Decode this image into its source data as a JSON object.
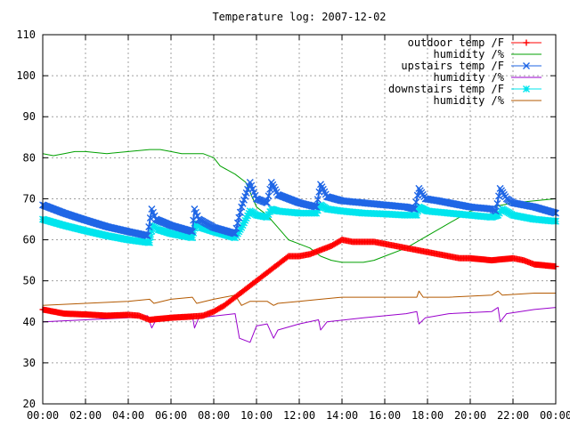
{
  "chart_data": {
    "type": "line",
    "title": "Temperature log: 2007-12-02",
    "xlabel": "",
    "ylabel": "",
    "xlim": [
      0,
      24
    ],
    "ylim": [
      20,
      110
    ],
    "x_ticks": [
      {
        "value": 0,
        "label": "00:00"
      },
      {
        "value": 2,
        "label": "02:00"
      },
      {
        "value": 4,
        "label": "04:00"
      },
      {
        "value": 6,
        "label": "06:00"
      },
      {
        "value": 8,
        "label": "08:00"
      },
      {
        "value": 10,
        "label": "10:00"
      },
      {
        "value": 12,
        "label": "12:00"
      },
      {
        "value": 14,
        "label": "14:00"
      },
      {
        "value": 16,
        "label": "16:00"
      },
      {
        "value": 18,
        "label": "18:00"
      },
      {
        "value": 20,
        "label": "20:00"
      },
      {
        "value": 22,
        "label": "22:00"
      },
      {
        "value": 24,
        "label": "00:00"
      }
    ],
    "y_ticks": [
      20,
      30,
      40,
      50,
      60,
      70,
      80,
      90,
      100,
      110
    ],
    "grid": true,
    "legend_position": "top-right",
    "series": [
      {
        "name": "outdoor temp /F",
        "color": "#ff0000",
        "marker": "plus",
        "points": [
          [
            0,
            43
          ],
          [
            1,
            42
          ],
          [
            2,
            41.8
          ],
          [
            3,
            41.5
          ],
          [
            4,
            41.7
          ],
          [
            4.5,
            41.5
          ],
          [
            5,
            40.5
          ],
          [
            6,
            41
          ],
          [
            7,
            41.3
          ],
          [
            7.5,
            41.5
          ],
          [
            8,
            42.5
          ],
          [
            8.5,
            44
          ],
          [
            9,
            46
          ],
          [
            9.5,
            48
          ],
          [
            10,
            50
          ],
          [
            10.5,
            52
          ],
          [
            11,
            54
          ],
          [
            11.5,
            56
          ],
          [
            12,
            56
          ],
          [
            12.5,
            56.5
          ],
          [
            13,
            57.5
          ],
          [
            13.5,
            58.5
          ],
          [
            14,
            60
          ],
          [
            14.5,
            59.5
          ],
          [
            15,
            59.5
          ],
          [
            15.5,
            59.5
          ],
          [
            16,
            59
          ],
          [
            16.5,
            58.5
          ],
          [
            17,
            58
          ],
          [
            17.5,
            57.5
          ],
          [
            18,
            57
          ],
          [
            18.5,
            56.5
          ],
          [
            19,
            56
          ],
          [
            19.5,
            55.5
          ],
          [
            20,
            55.5
          ],
          [
            21,
            55
          ],
          [
            22,
            55.5
          ],
          [
            22.5,
            55
          ],
          [
            23,
            54
          ],
          [
            24,
            53.5
          ]
        ]
      },
      {
        "name": "humidity /%",
        "color": "#00a000",
        "marker": "none",
        "points": [
          [
            0,
            81
          ],
          [
            0.5,
            80.5
          ],
          [
            1,
            81
          ],
          [
            1.5,
            81.5
          ],
          [
            2,
            81.5
          ],
          [
            3,
            81
          ],
          [
            4,
            81.5
          ],
          [
            5,
            82
          ],
          [
            5.5,
            82
          ],
          [
            6,
            81.5
          ],
          [
            6.5,
            81
          ],
          [
            7,
            81
          ],
          [
            7.5,
            81
          ],
          [
            8,
            80
          ],
          [
            8.3,
            78
          ],
          [
            9,
            76
          ],
          [
            9.5,
            74
          ],
          [
            10,
            68
          ],
          [
            10.5,
            66
          ],
          [
            11,
            63
          ],
          [
            11.5,
            60
          ],
          [
            12,
            59
          ],
          [
            12.5,
            58
          ],
          [
            13,
            56
          ],
          [
            13.5,
            55
          ],
          [
            14,
            54.5
          ],
          [
            15,
            54.5
          ],
          [
            15.5,
            55
          ],
          [
            16,
            56
          ],
          [
            17,
            58
          ],
          [
            18,
            61
          ],
          [
            19,
            64
          ],
          [
            20,
            67
          ],
          [
            21,
            68
          ],
          [
            22,
            69
          ],
          [
            23,
            69.5
          ],
          [
            24,
            70
          ]
        ]
      },
      {
        "name": "upstairs temp /F",
        "color": "#1f66e6",
        "marker": "x",
        "points": [
          [
            0,
            68.5
          ],
          [
            1,
            66.5
          ],
          [
            2,
            64.8
          ],
          [
            3,
            63.2
          ],
          [
            4,
            62
          ],
          [
            4.9,
            61
          ],
          [
            5.1,
            67.5
          ],
          [
            5.3,
            65
          ],
          [
            6,
            63.5
          ],
          [
            7,
            62
          ],
          [
            7.1,
            67.5
          ],
          [
            7.3,
            65
          ],
          [
            8,
            63
          ],
          [
            9,
            61.5
          ],
          [
            9.3,
            68
          ],
          [
            9.7,
            74
          ],
          [
            10,
            70
          ],
          [
            10.5,
            69
          ],
          [
            10.7,
            74
          ],
          [
            11,
            71
          ],
          [
            12,
            69
          ],
          [
            12.8,
            68
          ],
          [
            13,
            73.5
          ],
          [
            13.3,
            70.5
          ],
          [
            14,
            69.5
          ],
          [
            15,
            69
          ],
          [
            16,
            68.5
          ],
          [
            17,
            68
          ],
          [
            17.4,
            67.5
          ],
          [
            17.6,
            72.5
          ],
          [
            17.9,
            70
          ],
          [
            18.5,
            69.5
          ],
          [
            19,
            69
          ],
          [
            20,
            68
          ],
          [
            21,
            67.5
          ],
          [
            21.2,
            67
          ],
          [
            21.4,
            72.5
          ],
          [
            21.7,
            70
          ],
          [
            22,
            69
          ],
          [
            23,
            68
          ],
          [
            24,
            66.5
          ]
        ]
      },
      {
        "name": "humidity /%",
        "color": "#9900cc",
        "marker": "none",
        "points": [
          [
            0,
            40
          ],
          [
            2,
            40.5
          ],
          [
            4,
            41
          ],
          [
            4.9,
            41.5
          ],
          [
            5.1,
            38.5
          ],
          [
            5.3,
            40.5
          ],
          [
            7,
            41.5
          ],
          [
            7.1,
            38.5
          ],
          [
            7.3,
            41
          ],
          [
            9,
            42
          ],
          [
            9.2,
            36
          ],
          [
            9.7,
            35
          ],
          [
            10,
            39
          ],
          [
            10.5,
            39.5
          ],
          [
            10.8,
            36
          ],
          [
            11,
            38
          ],
          [
            12,
            39.5
          ],
          [
            12.9,
            40.5
          ],
          [
            13,
            38
          ],
          [
            13.3,
            40
          ],
          [
            15,
            41
          ],
          [
            17,
            42
          ],
          [
            17.5,
            42.5
          ],
          [
            17.6,
            39.5
          ],
          [
            17.9,
            41
          ],
          [
            19,
            42
          ],
          [
            21,
            42.5
          ],
          [
            21.3,
            43.5
          ],
          [
            21.4,
            40
          ],
          [
            21.7,
            42
          ],
          [
            23,
            43
          ],
          [
            24,
            43.5
          ]
        ]
      },
      {
        "name": "downstairs temp /F",
        "color": "#00e5ee",
        "marker": "star",
        "points": [
          [
            0,
            65
          ],
          [
            1,
            63.5
          ],
          [
            2,
            62.2
          ],
          [
            3,
            61
          ],
          [
            4,
            60
          ],
          [
            5,
            59.3
          ],
          [
            5.15,
            63.5
          ],
          [
            5.4,
            62.5
          ],
          [
            6,
            61.5
          ],
          [
            7,
            60.5
          ],
          [
            7.15,
            64
          ],
          [
            7.4,
            63
          ],
          [
            8,
            62
          ],
          [
            9,
            60.5
          ],
          [
            9.3,
            63
          ],
          [
            9.7,
            67
          ],
          [
            10,
            66
          ],
          [
            10.5,
            65.5
          ],
          [
            10.7,
            67.5
          ],
          [
            11,
            67
          ],
          [
            12,
            66.5
          ],
          [
            12.8,
            66.5
          ],
          [
            13,
            68.5
          ],
          [
            13.3,
            67.5
          ],
          [
            14,
            67
          ],
          [
            15,
            66.5
          ],
          [
            16,
            66.3
          ],
          [
            17,
            66
          ],
          [
            17.5,
            66
          ],
          [
            17.6,
            68
          ],
          [
            18,
            67
          ],
          [
            19,
            66.5
          ],
          [
            20,
            66
          ],
          [
            21,
            65.5
          ],
          [
            21.3,
            66
          ],
          [
            21.5,
            67.5
          ],
          [
            22,
            66
          ],
          [
            23,
            65
          ],
          [
            24,
            64.5
          ]
        ]
      },
      {
        "name": "humidity /%",
        "color": "#b35900",
        "marker": "none",
        "points": [
          [
            0,
            44
          ],
          [
            2,
            44.5
          ],
          [
            4,
            45
          ],
          [
            5,
            45.5
          ],
          [
            5.2,
            44.5
          ],
          [
            6,
            45.5
          ],
          [
            7,
            46
          ],
          [
            7.2,
            44.5
          ],
          [
            8,
            45.5
          ],
          [
            9,
            46.5
          ],
          [
            9.3,
            44
          ],
          [
            9.7,
            45
          ],
          [
            10.5,
            45
          ],
          [
            10.8,
            44
          ],
          [
            11,
            44.5
          ],
          [
            12,
            45
          ],
          [
            13,
            45.5
          ],
          [
            14,
            46
          ],
          [
            16,
            46
          ],
          [
            17.5,
            46
          ],
          [
            17.6,
            47.5
          ],
          [
            17.8,
            46
          ],
          [
            19,
            46
          ],
          [
            21,
            46.5
          ],
          [
            21.3,
            47.5
          ],
          [
            21.5,
            46.5
          ],
          [
            23,
            47
          ],
          [
            24,
            47
          ]
        ]
      }
    ]
  }
}
